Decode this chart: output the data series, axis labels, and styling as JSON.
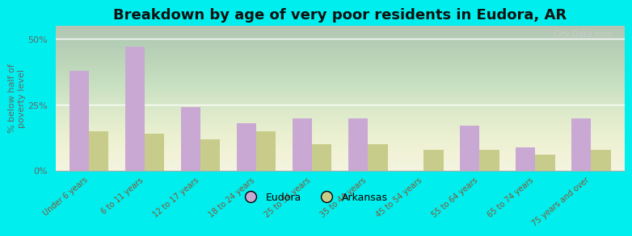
{
  "categories": [
    "Under 6 years",
    "6 to 11 years",
    "12 to 17 years",
    "18 to 24 years",
    "25 to 34 years",
    "35 to 44 years",
    "45 to 54 years",
    "55 to 64 years",
    "65 to 74 years",
    "75 years and over"
  ],
  "eudora_values": [
    38,
    47,
    24,
    18,
    20,
    20,
    0,
    17,
    9,
    20
  ],
  "arkansas_values": [
    15,
    14,
    12,
    15,
    10,
    10,
    8,
    8,
    6,
    8
  ],
  "eudora_color": "#c9a8d4",
  "arkansas_color": "#c8cc8a",
  "title": "Breakdown by age of very poor residents in Eudora, AR",
  "ylabel": "% below half of\npoverty level",
  "ylim": [
    0,
    55
  ],
  "yticks": [
    0,
    25,
    50
  ],
  "ytick_labels": [
    "0%",
    "25%",
    "50%"
  ],
  "background_color": "#00eeee",
  "legend_eudora": "Eudora",
  "legend_arkansas": "Arkansas",
  "title_fontsize": 13,
  "bar_width": 0.35,
  "watermark": "City-Data.com"
}
